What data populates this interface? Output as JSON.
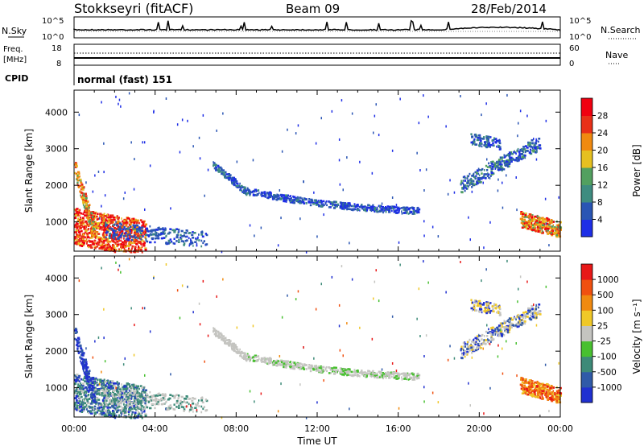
{
  "header": {
    "station": "Stokkseyri (fitACF)",
    "beam": "Beam 09",
    "date": "28/Feb/2014"
  },
  "chart_data": [
    {
      "type": "line",
      "panel": "noise",
      "left_label": "N.Sky",
      "right_label": "N.Search",
      "left_ticks": [
        "10^5",
        "10^0"
      ],
      "right_ticks": [
        "10^5",
        "10^0"
      ]
    },
    {
      "type": "line",
      "panel": "freq",
      "left_label_1": "Freq.",
      "left_label_2": "[MHz]",
      "right_label": "Nave",
      "left_ticks": [
        "18",
        "8"
      ],
      "right_ticks": [
        "60",
        "0"
      ],
      "cpid_label": "CPID",
      "cpid_text": "normal (fast) 151"
    },
    {
      "type": "heatmap",
      "panel": "power",
      "ylabel": "Slant Range [km]",
      "yticks": [
        "4000",
        "3000",
        "2000",
        "1000"
      ],
      "ytick_values": [
        4000,
        3000,
        2000,
        1000
      ],
      "ylim": [
        200,
        4600
      ],
      "colorbar_label": "Power [dB]",
      "colorbar_ticks": [
        "28",
        "24",
        "20",
        "16",
        "12",
        "8",
        "4"
      ],
      "colors": [
        "#1e2ee6",
        "#2a55b4",
        "#3e8c80",
        "#52a060",
        "#e6c020",
        "#f08a10",
        "#e83018",
        "#f00010"
      ]
    },
    {
      "type": "heatmap",
      "panel": "velocity",
      "ylabel": "Slant Range [km]",
      "yticks": [
        "4000",
        "3000",
        "2000",
        "1000"
      ],
      "ytick_values": [
        4000,
        3000,
        2000,
        1000
      ],
      "ylim": [
        200,
        4600
      ],
      "xlabel": "Time UT",
      "xticks": [
        "00:00",
        "04:00",
        "08:00",
        "12:00",
        "16:00",
        "20:00",
        "00:00"
      ],
      "xlim": [
        0,
        24
      ],
      "colorbar_label": "Velocity [m s⁻¹]",
      "colorbar_ticks": [
        "1000",
        "500",
        "100",
        "25",
        "-25",
        "-100",
        "-500",
        "-1000"
      ],
      "colors": [
        "#2030d0",
        "#305aa8",
        "#3d8a78",
        "#48c030",
        "#c4c4c0",
        "#f0c828",
        "#f08a10",
        "#f05010",
        "#e81818"
      ]
    }
  ]
}
